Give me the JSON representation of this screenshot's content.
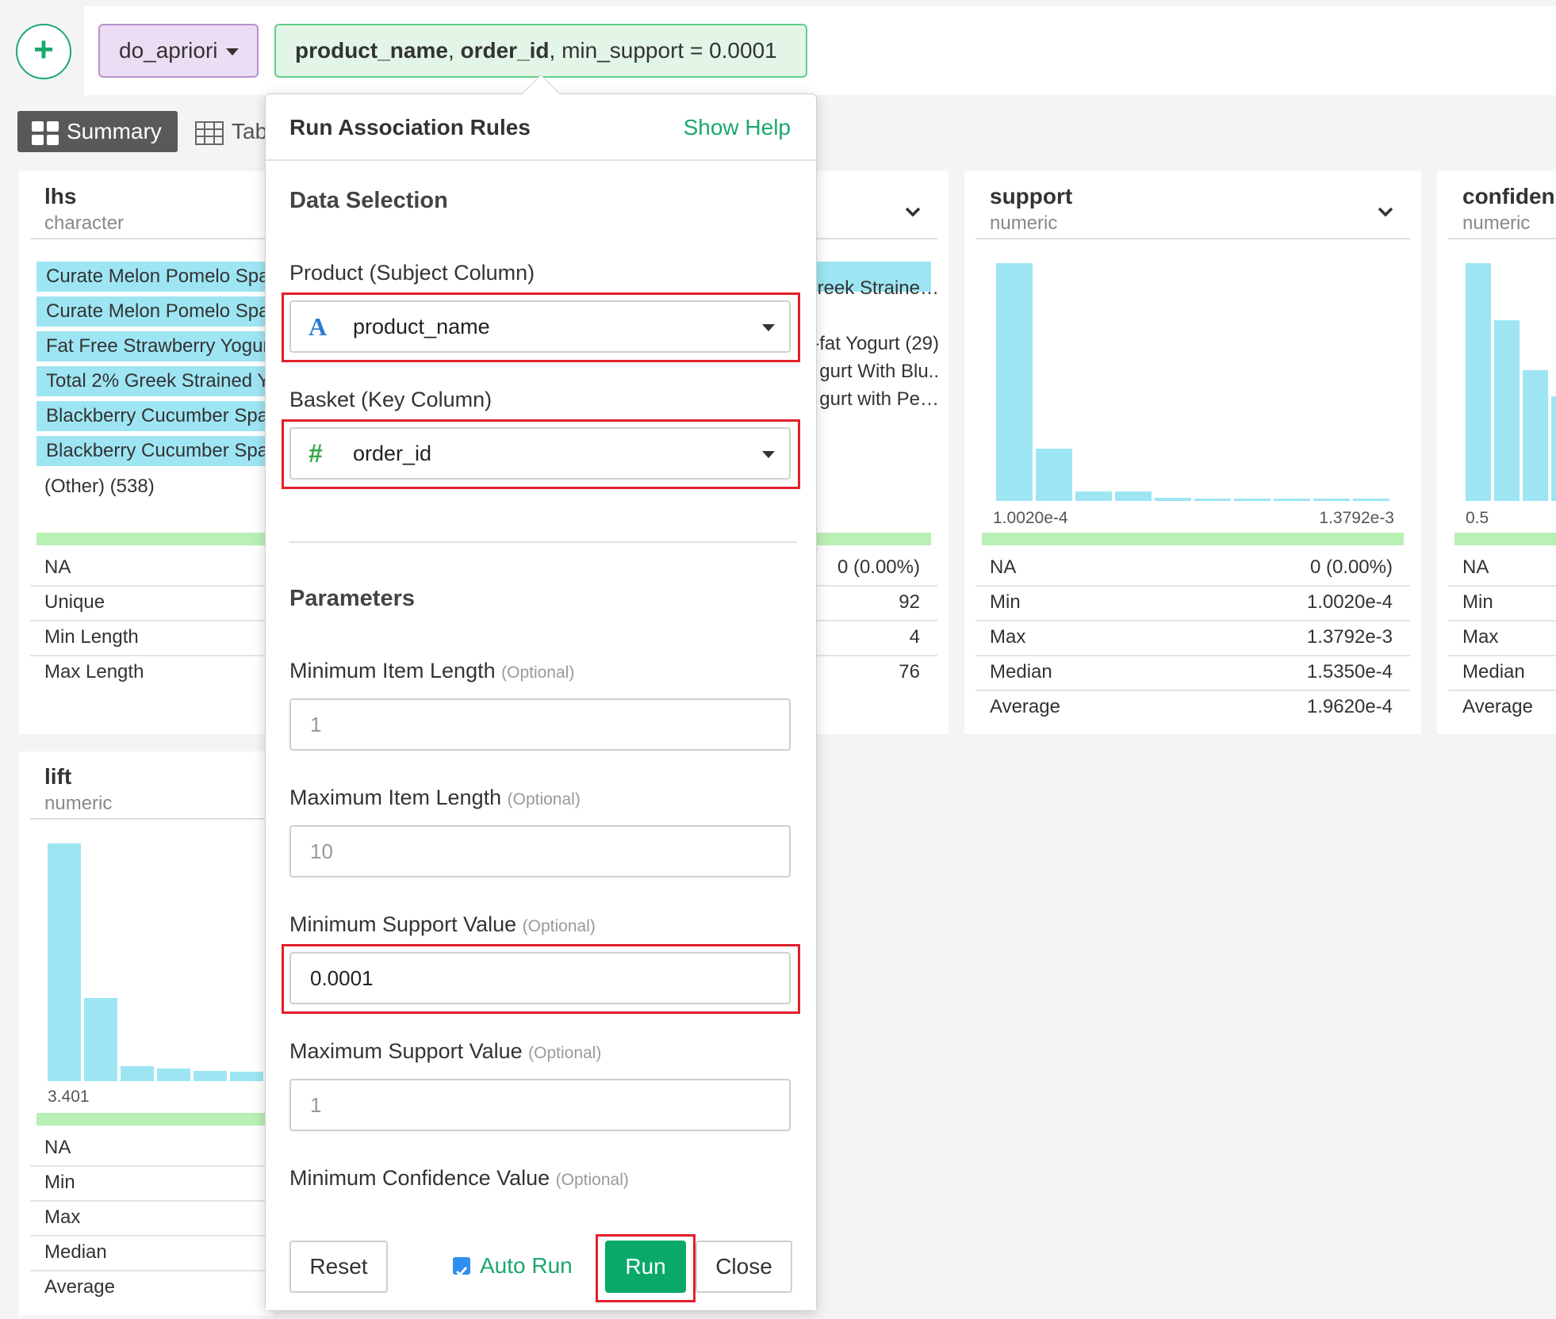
{
  "topbar": {
    "add_icon": "plus-icon",
    "command": "do_apriori",
    "args": {
      "col1": "product_name",
      "sep1": ", ",
      "col2": "order_id",
      "rest": ", min_support = 0.0001"
    }
  },
  "view_tabs": {
    "summary": "Summary",
    "table": "Tab"
  },
  "cards": {
    "lhs": {
      "title": "lhs",
      "type": "character",
      "categories": [
        {
          "label": "Curate Melon Pomelo Spa",
          "fraction": 1.0
        },
        {
          "label": "Curate Melon Pomelo Spa",
          "fraction": 1.0
        },
        {
          "label": "Fat Free Strawberry Yogur",
          "fraction": 1.0
        },
        {
          "label": "Total 2% Greek Strained Y",
          "fraction": 1.0
        },
        {
          "label": "Blackberry Cucumber Spa",
          "fraction": 1.0
        },
        {
          "label": "Blackberry Cucumber Spa",
          "fraction": 1.0
        }
      ],
      "other": "(Other) (538)",
      "stats": [
        {
          "k": "NA",
          "v": ""
        },
        {
          "k": "Unique",
          "v": ""
        },
        {
          "k": "Min Length",
          "v": ""
        },
        {
          "k": "Max Length",
          "v": ""
        }
      ]
    },
    "rhs": {
      "partial_texts": [
        "reek Straine…",
        "-fat Yogurt (29)",
        "gurt With Blu..",
        "gurt with Pe…"
      ],
      "stats": [
        {
          "k": "NA",
          "v": "0 (0.00%)"
        },
        {
          "k": "Unique",
          "v": "92"
        },
        {
          "k": "Min Length",
          "v": "4"
        },
        {
          "k": "Max Length",
          "v": "76"
        }
      ]
    },
    "support": {
      "title": "support",
      "type": "numeric",
      "axis_min": "1.0020e-4",
      "axis_max": "1.3792e-3",
      "histogram": [
        1.0,
        0.22,
        0.04,
        0.04,
        0.012,
        0.01,
        0.006,
        0.005,
        0.004,
        0.004
      ],
      "stats": [
        {
          "k": "NA",
          "v": "0 (0.00%)"
        },
        {
          "k": "Min",
          "v": "1.0020e-4"
        },
        {
          "k": "Max",
          "v": "1.3792e-3"
        },
        {
          "k": "Median",
          "v": "1.5350e-4"
        },
        {
          "k": "Average",
          "v": "1.9620e-4"
        }
      ]
    },
    "confidence": {
      "title": "confiden",
      "type": "numeric",
      "axis_min": "0.5",
      "histogram": [
        1.0,
        0.76,
        0.55,
        0.44
      ],
      "stats": [
        {
          "k": "NA",
          "v": ""
        },
        {
          "k": "Min",
          "v": ""
        },
        {
          "k": "Max",
          "v": ""
        },
        {
          "k": "Median",
          "v": ""
        },
        {
          "k": "Average",
          "v": ""
        }
      ]
    },
    "lift": {
      "title": "lift",
      "type": "numeric",
      "axis_min": "3.401",
      "histogram": [
        1.0,
        0.35,
        0.065,
        0.055,
        0.045,
        0.04
      ],
      "stats": [
        {
          "k": "NA",
          "v": ""
        },
        {
          "k": "Min",
          "v": ""
        },
        {
          "k": "Max",
          "v": ""
        },
        {
          "k": "Median",
          "v": ""
        },
        {
          "k": "Average",
          "v": ""
        }
      ]
    }
  },
  "dialog": {
    "title": "Run Association Rules",
    "help": "Show Help",
    "section_data": "Data Selection",
    "product_label": "Product (Subject Column)",
    "product_value": "product_name",
    "product_type_icon": "A",
    "basket_label": "Basket (Key Column)",
    "basket_value": "order_id",
    "basket_type_icon": "#",
    "section_params": "Parameters",
    "optional": "(Optional)",
    "min_item_label": "Minimum Item Length",
    "min_item_placeholder": "1",
    "max_item_label": "Maximum Item Length",
    "max_item_placeholder": "10",
    "min_support_label": "Minimum Support Value",
    "min_support_value": "0.0001",
    "max_support_label": "Maximum Support Value",
    "max_support_placeholder": "1",
    "min_conf_label": "Minimum Confidence Value",
    "reset": "Reset",
    "auto_run": "Auto Run",
    "run": "Run",
    "close": "Close"
  },
  "colors": {
    "accent_green": "#1aa86d",
    "run_button": "#0aa96a",
    "histogram_bar": "#9ee5f3",
    "highlight_red": "#e2202b",
    "command_pill": "#ecdcf4",
    "args_pill": "#e2f5e6"
  }
}
